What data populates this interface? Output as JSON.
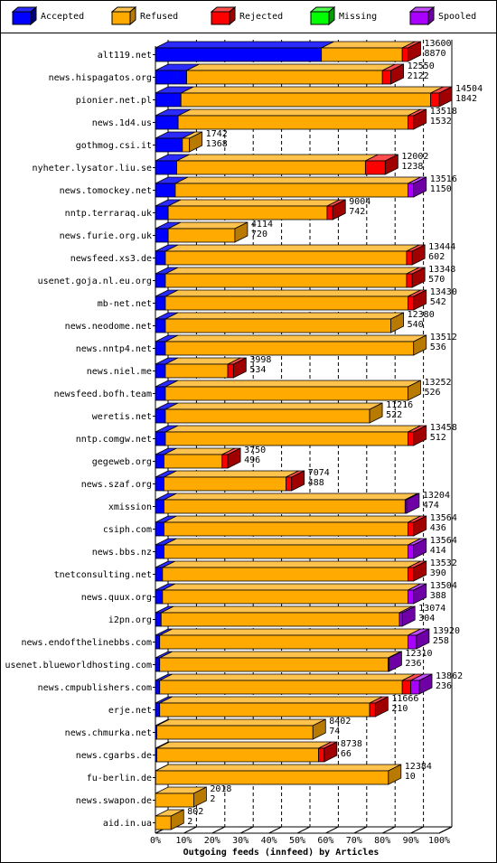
{
  "legend": [
    {
      "key": "accepted",
      "label": "Accepted",
      "color": "#0000ff",
      "side": "#00007f",
      "top": "#2b2bff"
    },
    {
      "key": "refused",
      "label": "Refused",
      "color": "#ffaa00",
      "side": "#b87a00",
      "top": "#ffc34d"
    },
    {
      "key": "rejected",
      "label": "Rejected",
      "color": "#ff0000",
      "side": "#a00000",
      "top": "#ff4d4d"
    },
    {
      "key": "missing",
      "label": "Missing",
      "color": "#00ff00",
      "side": "#00a000",
      "top": "#4dff4d"
    },
    {
      "key": "spooled",
      "label": "Spooled",
      "color": "#aa00ff",
      "side": "#6e00a6",
      "top": "#c34dff"
    }
  ],
  "chart_data": {
    "type": "bar",
    "orientation": "horizontal",
    "stacked": true,
    "xlabel": "Outgoing feeds (innfeed) by Articles",
    "x_ticks": [
      "0%",
      "10%",
      "20%",
      "30%",
      "40%",
      "50%",
      "60%",
      "70%",
      "80%",
      "90%",
      "100%"
    ],
    "xlim": [
      0,
      100
    ],
    "unit": "percent of articles",
    "series_order": [
      "accepted",
      "refused",
      "rejected",
      "missing",
      "spooled"
    ],
    "rows": [
      {
        "host": "alt119.net",
        "offered": "13600",
        "accepted": "8870",
        "segments": {
          "accepted": 58.5,
          "refused": 28.5,
          "rejected": 2.0,
          "missing": 0,
          "spooled": 0
        }
      },
      {
        "host": "news.hispagatos.org",
        "offered": "12550",
        "accepted": "2122",
        "segments": {
          "accepted": 11.0,
          "refused": 69.0,
          "rejected": 3.0,
          "missing": 0,
          "spooled": 0
        }
      },
      {
        "host": "pionier.net.pl",
        "offered": "14504",
        "accepted": "1842",
        "segments": {
          "accepted": 9.0,
          "refused": 88.0,
          "rejected": 3.0,
          "missing": 0,
          "spooled": 0
        }
      },
      {
        "host": "news.1d4.us",
        "offered": "13518",
        "accepted": "1532",
        "segments": {
          "accepted": 8.0,
          "refused": 81.0,
          "rejected": 2.0,
          "missing": 0,
          "spooled": 0
        }
      },
      {
        "host": "gothmog.csi.it",
        "offered": "1742",
        "accepted": "1368",
        "segments": {
          "accepted": 9.5,
          "refused": 2.5,
          "rejected": 0,
          "missing": 0,
          "spooled": 0
        }
      },
      {
        "host": "nyheter.lysator.liu.se",
        "offered": "12002",
        "accepted": "1238",
        "segments": {
          "accepted": 7.5,
          "refused": 66.5,
          "rejected": 7.0,
          "missing": 0,
          "spooled": 0
        }
      },
      {
        "host": "news.tomockey.net",
        "offered": "13516",
        "accepted": "1150",
        "segments": {
          "accepted": 7.0,
          "refused": 82.0,
          "rejected": 0,
          "missing": 0,
          "spooled": 2.0
        }
      },
      {
        "host": "nntp.terraraq.uk",
        "offered": "9004",
        "accepted": "742",
        "segments": {
          "accepted": 4.5,
          "refused": 56.0,
          "rejected": 2.0,
          "missing": 0,
          "spooled": 0
        }
      },
      {
        "host": "news.furie.org.uk",
        "offered": "4114",
        "accepted": "720",
        "segments": {
          "accepted": 4.5,
          "refused": 23.5,
          "rejected": 0,
          "missing": 0,
          "spooled": 0
        }
      },
      {
        "host": "newsfeed.xs3.de",
        "offered": "13444",
        "accepted": "602",
        "segments": {
          "accepted": 3.5,
          "refused": 85.0,
          "rejected": 2.0,
          "missing": 0,
          "spooled": 0
        }
      },
      {
        "host": "usenet.goja.nl.eu.org",
        "offered": "13348",
        "accepted": "570",
        "segments": {
          "accepted": 3.5,
          "refused": 85.0,
          "rejected": 2.0,
          "missing": 0,
          "spooled": 0
        }
      },
      {
        "host": "mb-net.net",
        "offered": "13430",
        "accepted": "542",
        "segments": {
          "accepted": 3.5,
          "refused": 85.5,
          "rejected": 2.0,
          "missing": 0,
          "spooled": 0
        }
      },
      {
        "host": "news.neodome.net",
        "offered": "12380",
        "accepted": "540",
        "segments": {
          "accepted": 3.5,
          "refused": 79.5,
          "rejected": 0,
          "missing": 0,
          "spooled": 0
        }
      },
      {
        "host": "news.nntp4.net",
        "offered": "13512",
        "accepted": "536",
        "segments": {
          "accepted": 3.5,
          "refused": 87.5,
          "rejected": 0,
          "missing": 0,
          "spooled": 0
        }
      },
      {
        "host": "news.niel.me",
        "offered": "3998",
        "accepted": "534",
        "segments": {
          "accepted": 3.5,
          "refused": 22.0,
          "rejected": 2.0,
          "missing": 0,
          "spooled": 0
        }
      },
      {
        "host": "newsfeed.bofh.team",
        "offered": "13252",
        "accepted": "526",
        "segments": {
          "accepted": 3.5,
          "refused": 85.5,
          "rejected": 0,
          "missing": 0,
          "spooled": 0
        }
      },
      {
        "host": "weretis.net",
        "offered": "11216",
        "accepted": "522",
        "segments": {
          "accepted": 3.5,
          "refused": 72.0,
          "rejected": 0,
          "missing": 0,
          "spooled": 0
        }
      },
      {
        "host": "nntp.comgw.net",
        "offered": "13458",
        "accepted": "512",
        "segments": {
          "accepted": 3.5,
          "refused": 85.5,
          "rejected": 2.0,
          "missing": 0,
          "spooled": 0
        }
      },
      {
        "host": "gegeweb.org",
        "offered": "3750",
        "accepted": "496",
        "segments": {
          "accepted": 3.0,
          "refused": 20.5,
          "rejected": 2.0,
          "missing": 0,
          "spooled": 0
        }
      },
      {
        "host": "news.szaf.org",
        "offered": "7074",
        "accepted": "488",
        "segments": {
          "accepted": 3.0,
          "refused": 43.0,
          "rejected": 2.0,
          "missing": 0,
          "spooled": 0
        }
      },
      {
        "host": "xmission",
        "offered": "13204",
        "accepted": "474",
        "segments": {
          "accepted": 3.0,
          "refused": 85.0,
          "rejected": 0,
          "missing": 0,
          "spooled": 0.5
        }
      },
      {
        "host": "csiph.com",
        "offered": "13564",
        "accepted": "436",
        "segments": {
          "accepted": 3.0,
          "refused": 86.0,
          "rejected": 2.0,
          "missing": 0,
          "spooled": 0
        }
      },
      {
        "host": "news.bbs.nz",
        "offered": "13564",
        "accepted": "414",
        "segments": {
          "accepted": 3.0,
          "refused": 86.0,
          "rejected": 0,
          "missing": 0,
          "spooled": 2.0
        }
      },
      {
        "host": "tnetconsulting.net",
        "offered": "13532",
        "accepted": "390",
        "segments": {
          "accepted": 2.5,
          "refused": 86.5,
          "rejected": 2.0,
          "missing": 0,
          "spooled": 0
        }
      },
      {
        "host": "news.quux.org",
        "offered": "13504",
        "accepted": "388",
        "segments": {
          "accepted": 2.5,
          "refused": 86.5,
          "rejected": 0,
          "missing": 0,
          "spooled": 2.0
        }
      },
      {
        "host": "i2pn.org",
        "offered": "13074",
        "accepted": "304",
        "segments": {
          "accepted": 2.0,
          "refused": 84.0,
          "rejected": 0,
          "missing": 0,
          "spooled": 1.0
        }
      },
      {
        "host": "news.endofthelinebbs.com",
        "offered": "13920",
        "accepted": "258",
        "segments": {
          "accepted": 1.5,
          "refused": 87.5,
          "rejected": 0,
          "missing": 0,
          "spooled": 3.0
        }
      },
      {
        "host": "usenet.blueworldhosting.com",
        "offered": "12310",
        "accepted": "236",
        "segments": {
          "accepted": 1.5,
          "refused": 80.5,
          "rejected": 0,
          "missing": 0,
          "spooled": 0.3
        }
      },
      {
        "host": "news.cmpublishers.com",
        "offered": "13862",
        "accepted": "236",
        "segments": {
          "accepted": 1.5,
          "refused": 85.5,
          "rejected": 3.0,
          "missing": 0,
          "spooled": 3.0
        }
      },
      {
        "host": "erje.net",
        "offered": "11666",
        "accepted": "210",
        "segments": {
          "accepted": 1.5,
          "refused": 74.0,
          "rejected": 2.0,
          "missing": 0,
          "spooled": 0
        }
      },
      {
        "host": "news.chmurka.net",
        "offered": "8402",
        "accepted": "74",
        "segments": {
          "accepted": 0.5,
          "refused": 55.0,
          "rejected": 0,
          "missing": 0,
          "spooled": 0
        }
      },
      {
        "host": "news.cgarbs.de",
        "offered": "8738",
        "accepted": "66",
        "segments": {
          "accepted": 0.5,
          "refused": 57.0,
          "rejected": 2.0,
          "missing": 0,
          "spooled": 0
        }
      },
      {
        "host": "fu-berlin.de",
        "offered": "12384",
        "accepted": "10",
        "segments": {
          "accepted": 0.1,
          "refused": 82.0,
          "rejected": 0,
          "missing": 0,
          "spooled": 0
        }
      },
      {
        "host": "news.swapon.de",
        "offered": "2018",
        "accepted": "2",
        "segments": {
          "accepted": 0,
          "refused": 13.5,
          "rejected": 0,
          "missing": 0,
          "spooled": 0
        }
      },
      {
        "host": "aid.in.ua",
        "offered": "802",
        "accepted": "2",
        "segments": {
          "accepted": 0,
          "refused": 5.5,
          "rejected": 0,
          "missing": 0,
          "spooled": 0
        }
      }
    ]
  }
}
